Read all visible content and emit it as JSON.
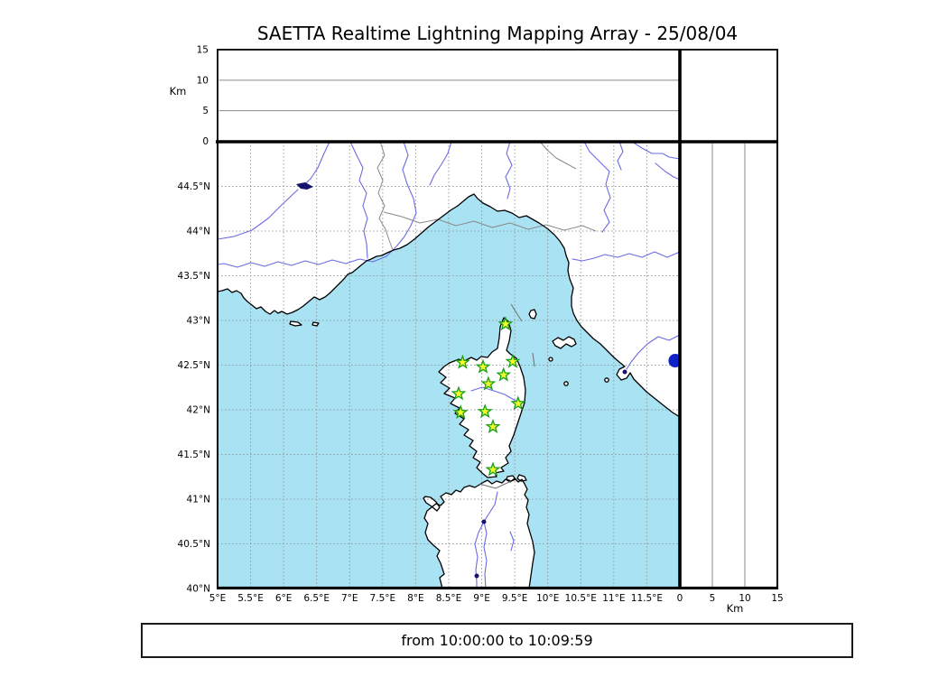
{
  "title": "SAETTA Realtime Lightning Mapping Array - 25/08/04",
  "time_range_label": "from 10:00:00 to 10:09:59",
  "map": {
    "lon_min": 5,
    "lon_max": 12,
    "lat_min": 40,
    "lat_max": 45,
    "lon_tick_values": [
      5,
      5.5,
      6,
      6.5,
      7,
      7.5,
      8,
      8.5,
      9,
      9.5,
      10,
      10.5,
      11,
      11.5
    ],
    "lon_tick_labels": [
      "5°E",
      "5.5°E",
      "6°E",
      "6.5°E",
      "7°E",
      "7.5°E",
      "8°E",
      "8.5°E",
      "9°E",
      "9.5°E",
      "10°E",
      "10.5°E",
      "11°E",
      "11.5°E"
    ],
    "lat_tick_values": [
      40,
      40.5,
      41,
      41.5,
      42,
      42.5,
      43,
      43.5,
      44,
      44.5
    ],
    "lat_tick_labels": [
      "40°N",
      "40.5°N",
      "41°N",
      "41.5°N",
      "42°N",
      "42.5°N",
      "43°N",
      "43.5°N",
      "44°N",
      "44.5°N"
    ]
  },
  "altitude_axis": {
    "label": "Km",
    "tick_values": [
      0,
      5,
      10,
      15
    ],
    "tick_labels": [
      "0",
      "5",
      "10",
      "15"
    ],
    "max": 15,
    "gridlines": [
      5,
      10
    ]
  },
  "chart_data": {
    "type": "scatter",
    "title": "SAETTA Realtime Lightning Mapping Array - 25/08/04",
    "time_window": "from 10:00:00 to 10:09:59",
    "x_axis": {
      "label": "longitude",
      "unit": "°E",
      "min": 5,
      "max": 12,
      "tick_step": 0.5
    },
    "y_axis": {
      "label": "latitude",
      "unit": "°N",
      "min": 40,
      "max": 45,
      "tick_step": 0.5
    },
    "altitude_panels": {
      "label": "Km",
      "min": 0,
      "max": 15,
      "ticks": [
        0,
        5,
        10,
        15
      ]
    },
    "grid": true,
    "series": [
      {
        "name": "lma-stations",
        "marker": "star",
        "points": [
          {
            "lon": 9.36,
            "lat": 42.96
          },
          {
            "lon": 8.71,
            "lat": 42.53
          },
          {
            "lon": 9.02,
            "lat": 42.48
          },
          {
            "lon": 9.47,
            "lat": 42.54
          },
          {
            "lon": 9.33,
            "lat": 42.39
          },
          {
            "lon": 9.1,
            "lat": 42.29
          },
          {
            "lon": 8.65,
            "lat": 42.18
          },
          {
            "lon": 9.55,
            "lat": 42.07
          },
          {
            "lon": 8.68,
            "lat": 41.97
          },
          {
            "lon": 9.05,
            "lat": 41.98
          },
          {
            "lon": 9.17,
            "lat": 41.81
          },
          {
            "lon": 9.17,
            "lat": 41.33
          }
        ]
      },
      {
        "name": "lightning-flashes",
        "marker": "circle",
        "points": [
          {
            "lon": 11.93,
            "lat": 42.55
          }
        ]
      }
    ]
  },
  "colors": {
    "sea": "#A9E2F3",
    "land": "#FFFFFF",
    "coast": "#000000",
    "river": "#6B6BE2",
    "lake": "#14146E",
    "grid": "#9A9A9A",
    "panel_grid": "#8A8A8A",
    "admin_border": "#8A8A8A",
    "station_fill": "#F2FA28",
    "station_stroke": "#17A017",
    "flash": "#1022CC",
    "frame": "#000000"
  }
}
